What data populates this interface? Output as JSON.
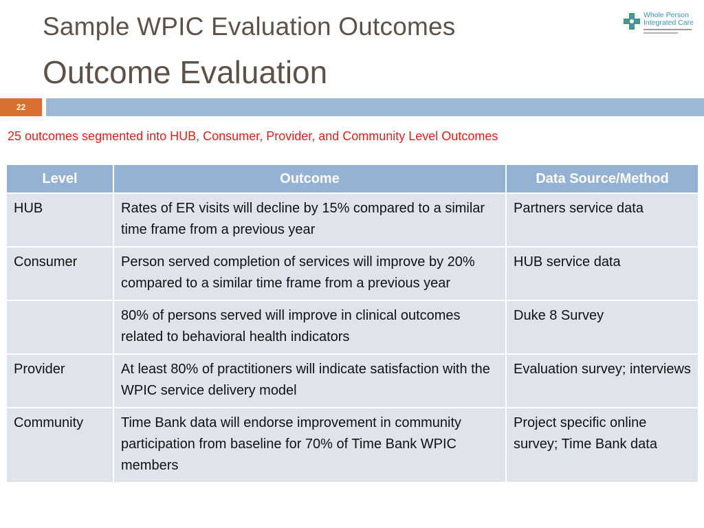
{
  "slide": {
    "title": "Sample WPIC Evaluation Outcomes",
    "heading": "Outcome Evaluation",
    "page_number": "22",
    "subtitle": "25 outcomes segmented into HUB, Consumer, Provider, and Community Level Outcomes"
  },
  "logo": {
    "line1": "Whole Person",
    "line2": "Integrated Care",
    "icon": "medical-cross-icon"
  },
  "colors": {
    "title": "#5e5248",
    "accent_orange": "#d86e30",
    "accent_blue": "#9db8d6",
    "subtitle_red": "#e0201b",
    "table_header": "#94b2d4",
    "table_cell": "#dfe4ec"
  },
  "table": {
    "headers": [
      "Level",
      "Outcome",
      "Data Source/Method"
    ],
    "rows": [
      {
        "level": "HUB",
        "outcome": "Rates of ER visits will decline by 15% compared to a similar time frame from a previous year",
        "source": "Partners service data"
      },
      {
        "level": "Consumer",
        "outcome": "Person served completion of services will improve by 20% compared to a similar time frame from a previous year",
        "source": "HUB service data"
      },
      {
        "level": "",
        "outcome": "80% of persons served will improve in clinical outcomes related to behavioral health indicators",
        "source": "Duke 8 Survey"
      },
      {
        "level": "Provider",
        "outcome": "At least 80% of practitioners will indicate satisfaction with the WPIC service delivery model",
        "source": "Evaluation survey; interviews"
      },
      {
        "level": "Community",
        "outcome": "Time Bank data will endorse improvement in community participation from baseline for 70% of Time Bank WPIC members",
        "source": "Project specific online survey; Time Bank data"
      }
    ]
  }
}
